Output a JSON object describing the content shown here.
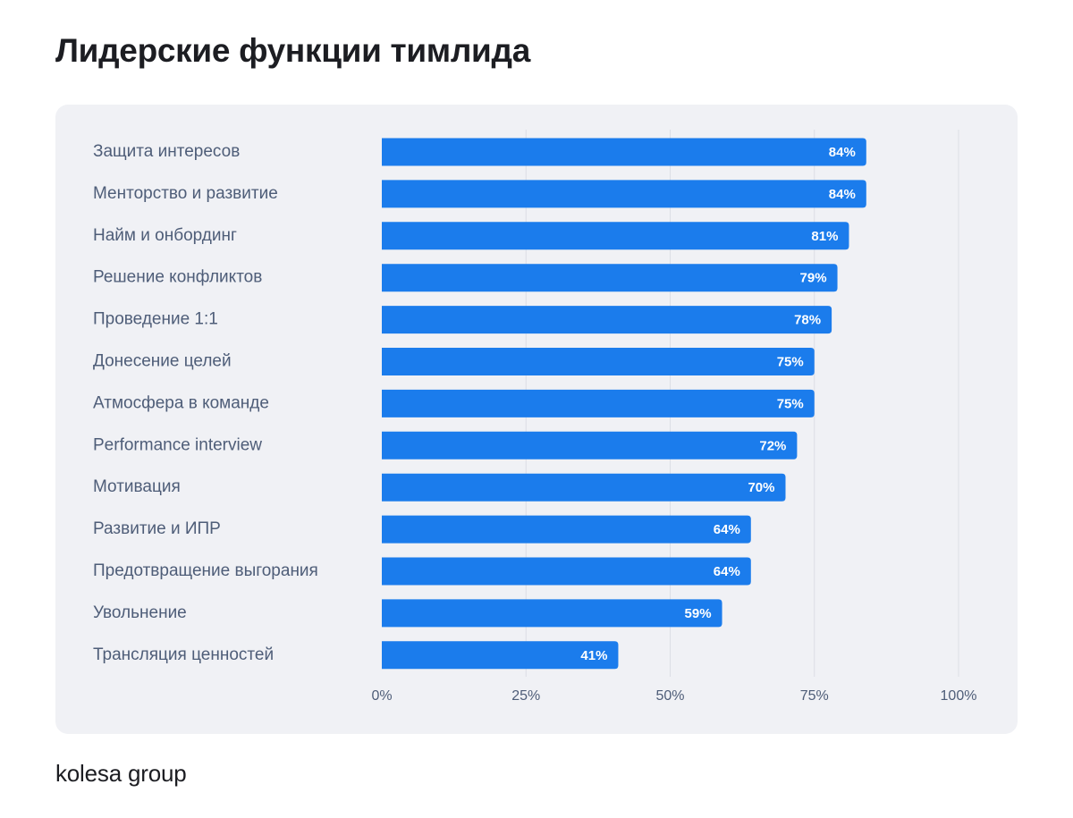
{
  "chart_data": {
    "type": "bar",
    "orientation": "horizontal",
    "title": "Лидерские функции тимлида",
    "categories": [
      "Защита интересов",
      "Менторство и развитие",
      "Найм и онбординг",
      "Решение конфликтов",
      "Проведение 1:1",
      "Донесение целей",
      "Атмосфера в команде",
      "Performance interview",
      "Мотивация",
      "Развитие и ИПР",
      "Предотвращение выгорания",
      "Увольнение",
      "Трансляция ценностей"
    ],
    "values": [
      84,
      84,
      81,
      79,
      78,
      75,
      75,
      72,
      70,
      64,
      64,
      59,
      41
    ],
    "value_labels": [
      "84%",
      "84%",
      "81%",
      "79%",
      "78%",
      "75%",
      "75%",
      "72%",
      "70%",
      "64%",
      "64%",
      "59%",
      "41%"
    ],
    "xlim": [
      0,
      100
    ],
    "xticks": [
      0,
      25,
      50,
      75,
      100
    ],
    "xtick_labels": [
      "0%",
      "25%",
      "50%",
      "75%",
      "100%"
    ],
    "grid": "vertical",
    "legend": "none",
    "colors": {
      "bar": "#1b7cec",
      "panel": "#f0f1f5",
      "grid": "#dcdee5",
      "label": "#4e5d78",
      "title": "#1c1d22"
    }
  },
  "footer": {
    "logo_text": "kolesa group"
  }
}
